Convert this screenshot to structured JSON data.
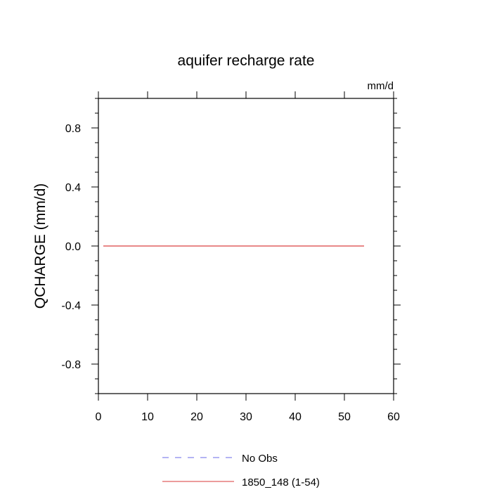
{
  "chart_data": {
    "type": "line",
    "title": "aquifer recharge rate",
    "units_label": "mm/d",
    "ylabel": "QCHARGE  (mm/d)",
    "xlabel": "",
    "xlim": [
      0,
      60
    ],
    "ylim": [
      -1,
      1
    ],
    "x_ticks": [
      0,
      10,
      20,
      30,
      40,
      50,
      60
    ],
    "x_tick_labels": [
      "0",
      "10",
      "20",
      "30",
      "40",
      "50",
      "60"
    ],
    "y_ticks": [
      -0.8,
      -0.4,
      0.0,
      0.4,
      0.8
    ],
    "y_tick_labels": [
      "-0.8",
      "-0.4",
      "0.0",
      "0.4",
      "0.8"
    ],
    "grid": false,
    "legend_position": "bottom-center",
    "series": [
      {
        "name": "No Obs",
        "color": "#8888ee",
        "dash": "dashed",
        "points": []
      },
      {
        "name": "1850_148 (1-54)",
        "color": "#e06060",
        "dash": "solid",
        "points": [
          [
            1,
            0.0
          ],
          [
            54,
            0.0
          ]
        ]
      }
    ]
  }
}
